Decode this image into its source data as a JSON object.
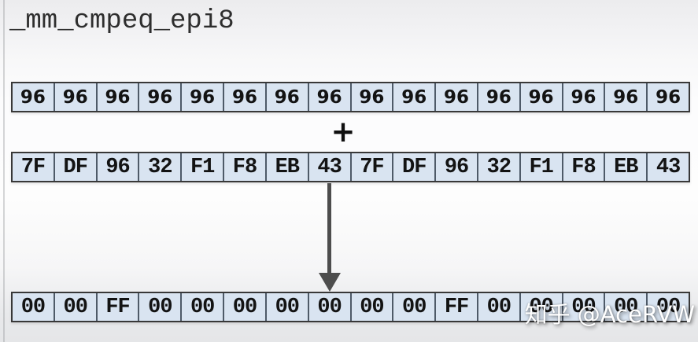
{
  "title": "_mm_cmpeq_epi8",
  "operator_plus": "+",
  "vectors": {
    "a": {
      "cells": [
        "96",
        "96",
        "96",
        "96",
        "96",
        "96",
        "96",
        "96",
        "96",
        "96",
        "96",
        "96",
        "96",
        "96",
        "96",
        "96"
      ]
    },
    "b": {
      "cells": [
        "7F",
        "DF",
        "96",
        "32",
        "F1",
        "F8",
        "EB",
        "43",
        "7F",
        "DF",
        "96",
        "32",
        "F1",
        "F8",
        "EB",
        "43"
      ]
    },
    "result": {
      "cells": [
        "00",
        "00",
        "FF",
        "00",
        "00",
        "00",
        "00",
        "00",
        "00",
        "00",
        "FF",
        "00",
        "00",
        "00",
        "00",
        "00"
      ]
    }
  },
  "watermark": "知乎 @AceRVW",
  "colors": {
    "cell_fill": "#d9e4f1",
    "cell_border_outer": "#383838",
    "cell_separator": "#4e5a68",
    "arrow": "#4d4d4d",
    "title_text": "#2e2e2e",
    "watermark_text": "#ffffff"
  }
}
